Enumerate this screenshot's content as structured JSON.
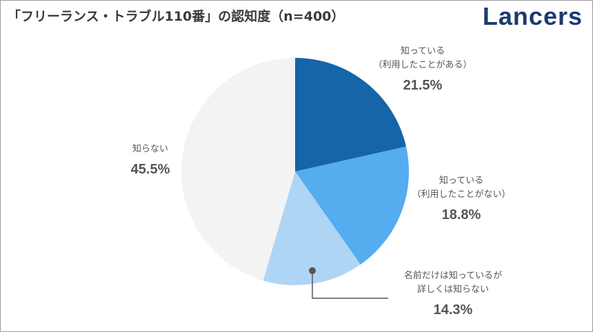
{
  "chart_data": {
    "type": "pie",
    "title": "「フリーランス・トラブル110番」の認知度（n=400）",
    "brand": "Lancers",
    "categories": [
      "知っている\n（利用したことがある）",
      "知っている\n（利用したことがない）",
      "名前だけは知っているが\n詳しくは知らない",
      "知らない"
    ],
    "values": [
      21.5,
      18.8,
      14.3,
      45.5
    ],
    "value_labels": [
      "21.5%",
      "18.8%",
      "14.3%",
      "45.5%"
    ],
    "colors": [
      "#1565a8",
      "#55acee",
      "#afd5f5",
      "#f3f3f3"
    ]
  }
}
